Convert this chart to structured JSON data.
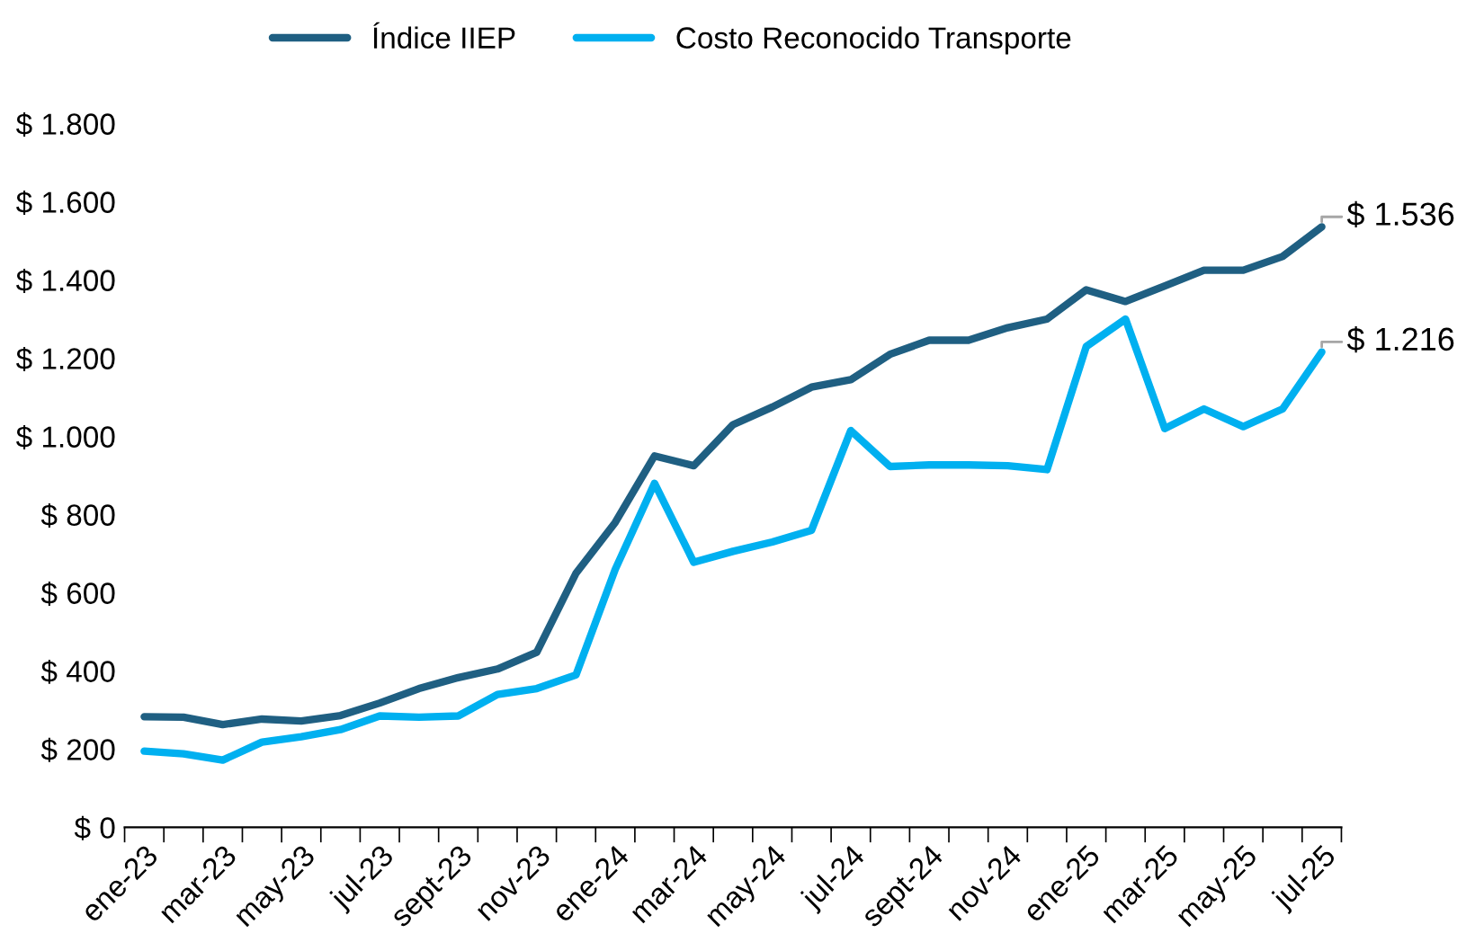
{
  "chart_data": {
    "type": "line",
    "categories": [
      "ene-23",
      null,
      "mar-23",
      null,
      "may-23",
      null,
      "jul-23",
      null,
      "sept-23",
      null,
      "nov-23",
      null,
      "ene-24",
      null,
      "mar-24",
      null,
      "may-24",
      null,
      "jul-24",
      null,
      "sept-24",
      null,
      "nov-24",
      null,
      "ene-25",
      null,
      "mar-25",
      null,
      "may-25",
      null,
      "jul-25"
    ],
    "series": [
      {
        "name": "Índice IIEP",
        "color": "#1f5f82",
        "values": [
          283,
          282,
          263,
          277,
          272,
          286,
          318,
          355,
          383,
          405,
          448,
          650,
          780,
          950,
          925,
          1030,
          1075,
          1126,
          1145,
          1210,
          1246,
          1246,
          1278,
          1300,
          1375,
          1345,
          1385,
          1425,
          1425,
          1460,
          1536
        ],
        "value_labels": [
          null,
          null,
          null,
          null,
          null,
          null,
          null,
          null,
          null,
          null,
          null,
          null,
          null,
          null,
          null,
          null,
          null,
          null,
          null,
          null,
          null,
          null,
          null,
          null,
          null,
          null,
          null,
          null,
          null,
          null,
          "$ 1.536"
        ]
      },
      {
        "name": "Costo Reconocido Transporte",
        "color": "#00b0f0",
        "values": [
          195,
          188,
          172,
          218,
          232,
          250,
          285,
          282,
          285,
          340,
          355,
          390,
          660,
          880,
          678,
          706,
          730,
          760,
          1015,
          923,
          927,
          927,
          925,
          915,
          1230,
          1300,
          1020,
          1070,
          1025,
          1070,
          1216
        ],
        "value_labels": [
          null,
          null,
          null,
          null,
          null,
          null,
          null,
          null,
          null,
          null,
          null,
          null,
          null,
          null,
          null,
          null,
          null,
          null,
          null,
          null,
          null,
          null,
          null,
          null,
          null,
          null,
          null,
          null,
          null,
          null,
          "$ 1.216"
        ]
      }
    ],
    "ylim": [
      0,
      1800
    ],
    "yticks": [
      {
        "value": 0,
        "label": "$ 0"
      },
      {
        "value": 200,
        "label": "$ 200"
      },
      {
        "value": 400,
        "label": "$ 400"
      },
      {
        "value": 600,
        "label": "$ 600"
      },
      {
        "value": 800,
        "label": "$ 800"
      },
      {
        "value": 1000,
        "label": "$ 1.000"
      },
      {
        "value": 1200,
        "label": "$ 1.200"
      },
      {
        "value": 1400,
        "label": "$ 1.400"
      },
      {
        "value": 1600,
        "label": "$ 1.600"
      },
      {
        "value": 1800,
        "label": "$ 1.800"
      }
    ],
    "grid": false,
    "legend": "top",
    "marker": "none",
    "line_style": "solid"
  }
}
